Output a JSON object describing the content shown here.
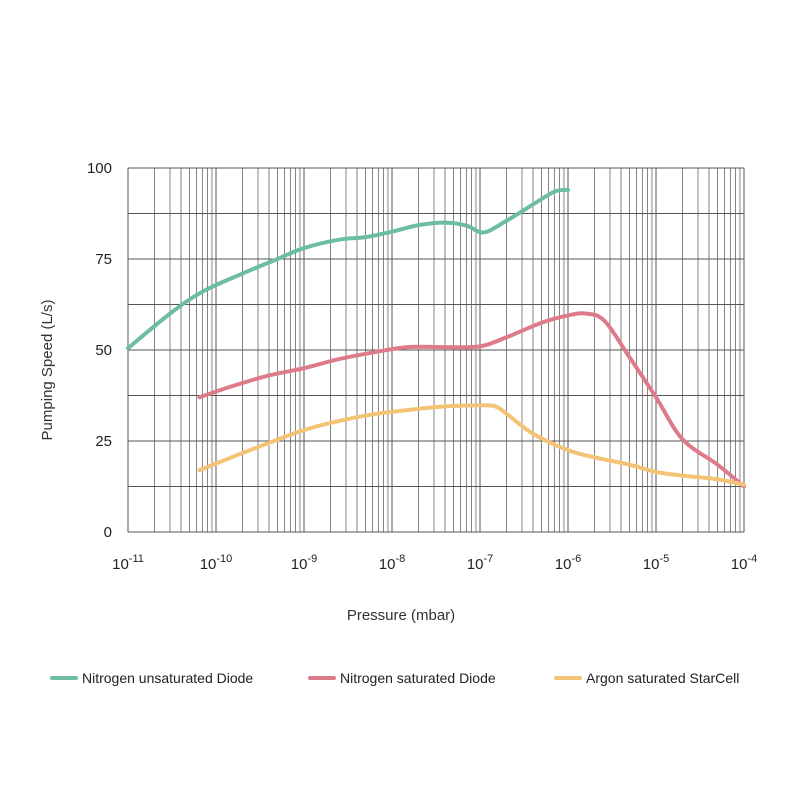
{
  "chart_data": {
    "type": "line",
    "xscale": "log",
    "xlabel": "Pressure (mbar)",
    "ylabel": "Pumping Speed (L/s)",
    "xlim": [
      1e-11,
      0.0001
    ],
    "ylim": [
      0,
      100
    ],
    "x_ticks": [
      {
        "base": "10",
        "exp": "-11",
        "value": 1e-11
      },
      {
        "base": "10",
        "exp": "-10",
        "value": 1e-10
      },
      {
        "base": "10",
        "exp": "-9",
        "value": 1e-09
      },
      {
        "base": "10",
        "exp": "-8",
        "value": 1e-08
      },
      {
        "base": "10",
        "exp": "-7",
        "value": 1e-07
      },
      {
        "base": "10",
        "exp": "-6",
        "value": 1e-06
      },
      {
        "base": "10",
        "exp": "-5",
        "value": 1e-05
      },
      {
        "base": "10",
        "exp": "-4",
        "value": 0.0001
      }
    ],
    "y_ticks": [
      "0",
      "25",
      "50",
      "75",
      "100"
    ],
    "grid": true,
    "legend_position": "bottom",
    "series": [
      {
        "name": "Nitrogen unsaturated Diode",
        "color": "#6dbda4",
        "x": [
          1e-11,
          3e-11,
          7e-11,
          2e-10,
          5e-10,
          1e-09,
          2.5e-09,
          5e-09,
          1e-08,
          2e-08,
          4e-08,
          7e-08,
          1.1e-07,
          2e-07,
          4e-07,
          7e-07,
          1e-06
        ],
        "y": [
          50.5,
          60,
          66,
          71,
          75,
          78,
          80.3,
          81,
          82.5,
          84.3,
          85,
          84.2,
          82.3,
          85.5,
          90,
          93.5,
          94
        ]
      },
      {
        "name": "Nitrogen saturated Diode",
        "color": "#dd7b8b",
        "x": [
          6.5e-11,
          1.5e-10,
          4e-10,
          1e-09,
          2.5e-09,
          6e-09,
          1.5e-08,
          4e-08,
          1e-07,
          2e-07,
          5e-07,
          1e-06,
          1.6e-06,
          2.6e-06,
          5e-06,
          1e-05,
          2e-05,
          5e-05,
          0.0001
        ],
        "y": [
          37,
          40,
          43,
          45,
          47.5,
          49.3,
          50.8,
          50.8,
          51,
          53.5,
          57.5,
          59.5,
          60,
          58,
          48,
          37,
          25.5,
          18.5,
          12.5
        ]
      },
      {
        "name": "Argon saturated StarCell",
        "color": "#f3c475",
        "x": [
          6.5e-11,
          1.5e-10,
          4e-10,
          1e-09,
          2.5e-09,
          6e-09,
          1.5e-08,
          4e-08,
          1e-07,
          1.5e-07,
          2e-07,
          4e-07,
          1e-06,
          2e-06,
          5e-06,
          1e-05,
          2e-05,
          5e-05,
          0.0001
        ],
        "y": [
          17,
          20.5,
          24.5,
          28,
          30.5,
          32.3,
          33.5,
          34.5,
          34.8,
          34.5,
          32.5,
          27,
          22.5,
          20.5,
          18.5,
          16.5,
          15.5,
          14.5,
          13
        ]
      }
    ]
  }
}
